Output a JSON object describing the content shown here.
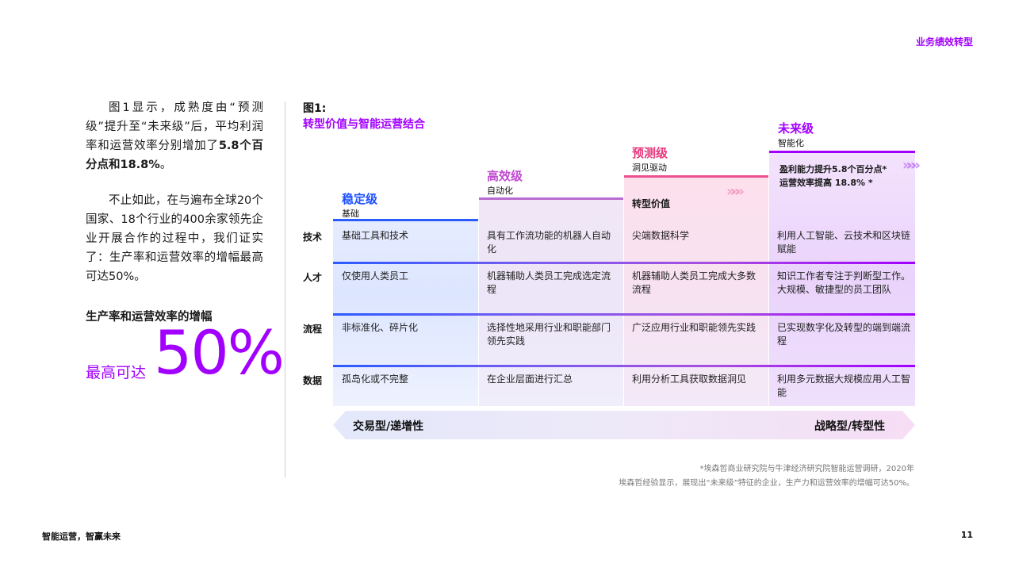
{
  "header": {
    "section": "业务绩效转型"
  },
  "footer": {
    "left": "智能运营，智赢未来",
    "page": "11"
  },
  "left_column": {
    "para1_lead": "图1显示，成熟度由“预测级”提升至“未来级”后，平均利润率和运营效率分别增加了",
    "para1_bold": "5.8个百分点和18.8%",
    "para1_end": "。",
    "para2": "不止如此，在与遍布全球20个国家、18个行业的400余家领先企业开展合作的过程中，我们证实了：生产率和运营效率的增幅最高可达50%。",
    "stat_label": "生产率和运营效率的增幅",
    "stat_prefix": "最高可达",
    "stat_value": "50%"
  },
  "figure": {
    "number": "图1:",
    "title": "转型价值与智能运营结合",
    "rows": [
      "技术",
      "人才",
      "流程",
      "数据"
    ],
    "columns": [
      {
        "title": "稳定级",
        "subtitle": "基础",
        "title_color": "#1e50ff",
        "cells": [
          "基础工具和技术",
          "仅使用人类员工",
          "非标准化、碎片化",
          "孤岛化或不完整"
        ]
      },
      {
        "title": "高效级",
        "subtitle": "自动化",
        "title_color": "#c04bd0",
        "cells": [
          "具有工作流功能的机器人自动化",
          "机器辅助人类员工完成选定流程",
          "选择性地采用行业和职能部门领先实践",
          "在企业层面进行汇总"
        ]
      },
      {
        "title": "预测级",
        "subtitle": "洞见驱动",
        "title_color": "#e6397e",
        "header_note": "转型价值",
        "cells": [
          "尖端数据科学",
          "机器辅助人类员工完成大多数流程",
          "广泛应用行业和职能领先实践",
          "利用分析工具获取数据洞见"
        ]
      },
      {
        "title": "未来级",
        "subtitle": "智能化",
        "title_color": "#a100ff",
        "header_note_1": "盈利能力提升5.8个百分点*",
        "header_note_2": "运营效率提高 18.8% *",
        "cells": [
          "利用人工智能、云技术和区块链赋能",
          "知识工作者专注于判断型工作。大规模、敏捷型的员工团队",
          "已实现数字化及转型的端到端流程",
          "利用多元数据大规模应用人工智能"
        ]
      }
    ],
    "arrow_left": "交易型/递增性",
    "arrow_right": "战略型/转型性",
    "note1": "*埃森哲商业研究院与牛津经济研究院智能运营调研，2020年",
    "note2": "埃森哲经验显示，展现出“未来级”特征的企业，生产力和运营效率的增幅可达50%。",
    "chevron_glyph": "»»»"
  }
}
